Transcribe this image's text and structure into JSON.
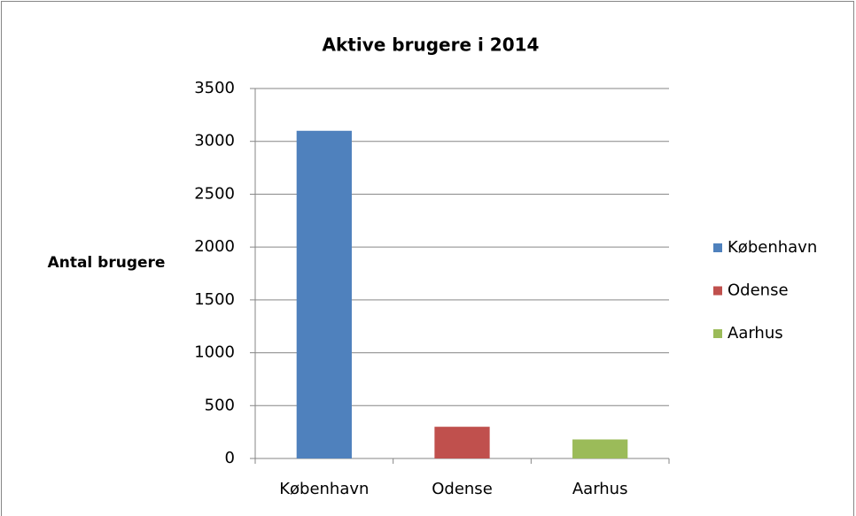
{
  "chart_data": {
    "type": "bar",
    "title": "Aktive brugere i 2014",
    "y_label": "Antal brugere",
    "categories": [
      "København",
      "Odense",
      "Aarhus"
    ],
    "values": [
      3100,
      300,
      180
    ],
    "colors": [
      "#4f81bd",
      "#c0504d",
      "#9bbb59"
    ],
    "ylim": [
      0,
      3500
    ],
    "yticks": [
      0,
      500,
      1000,
      1500,
      2000,
      2500,
      3000,
      3500
    ],
    "grid": true,
    "legend": "right"
  }
}
